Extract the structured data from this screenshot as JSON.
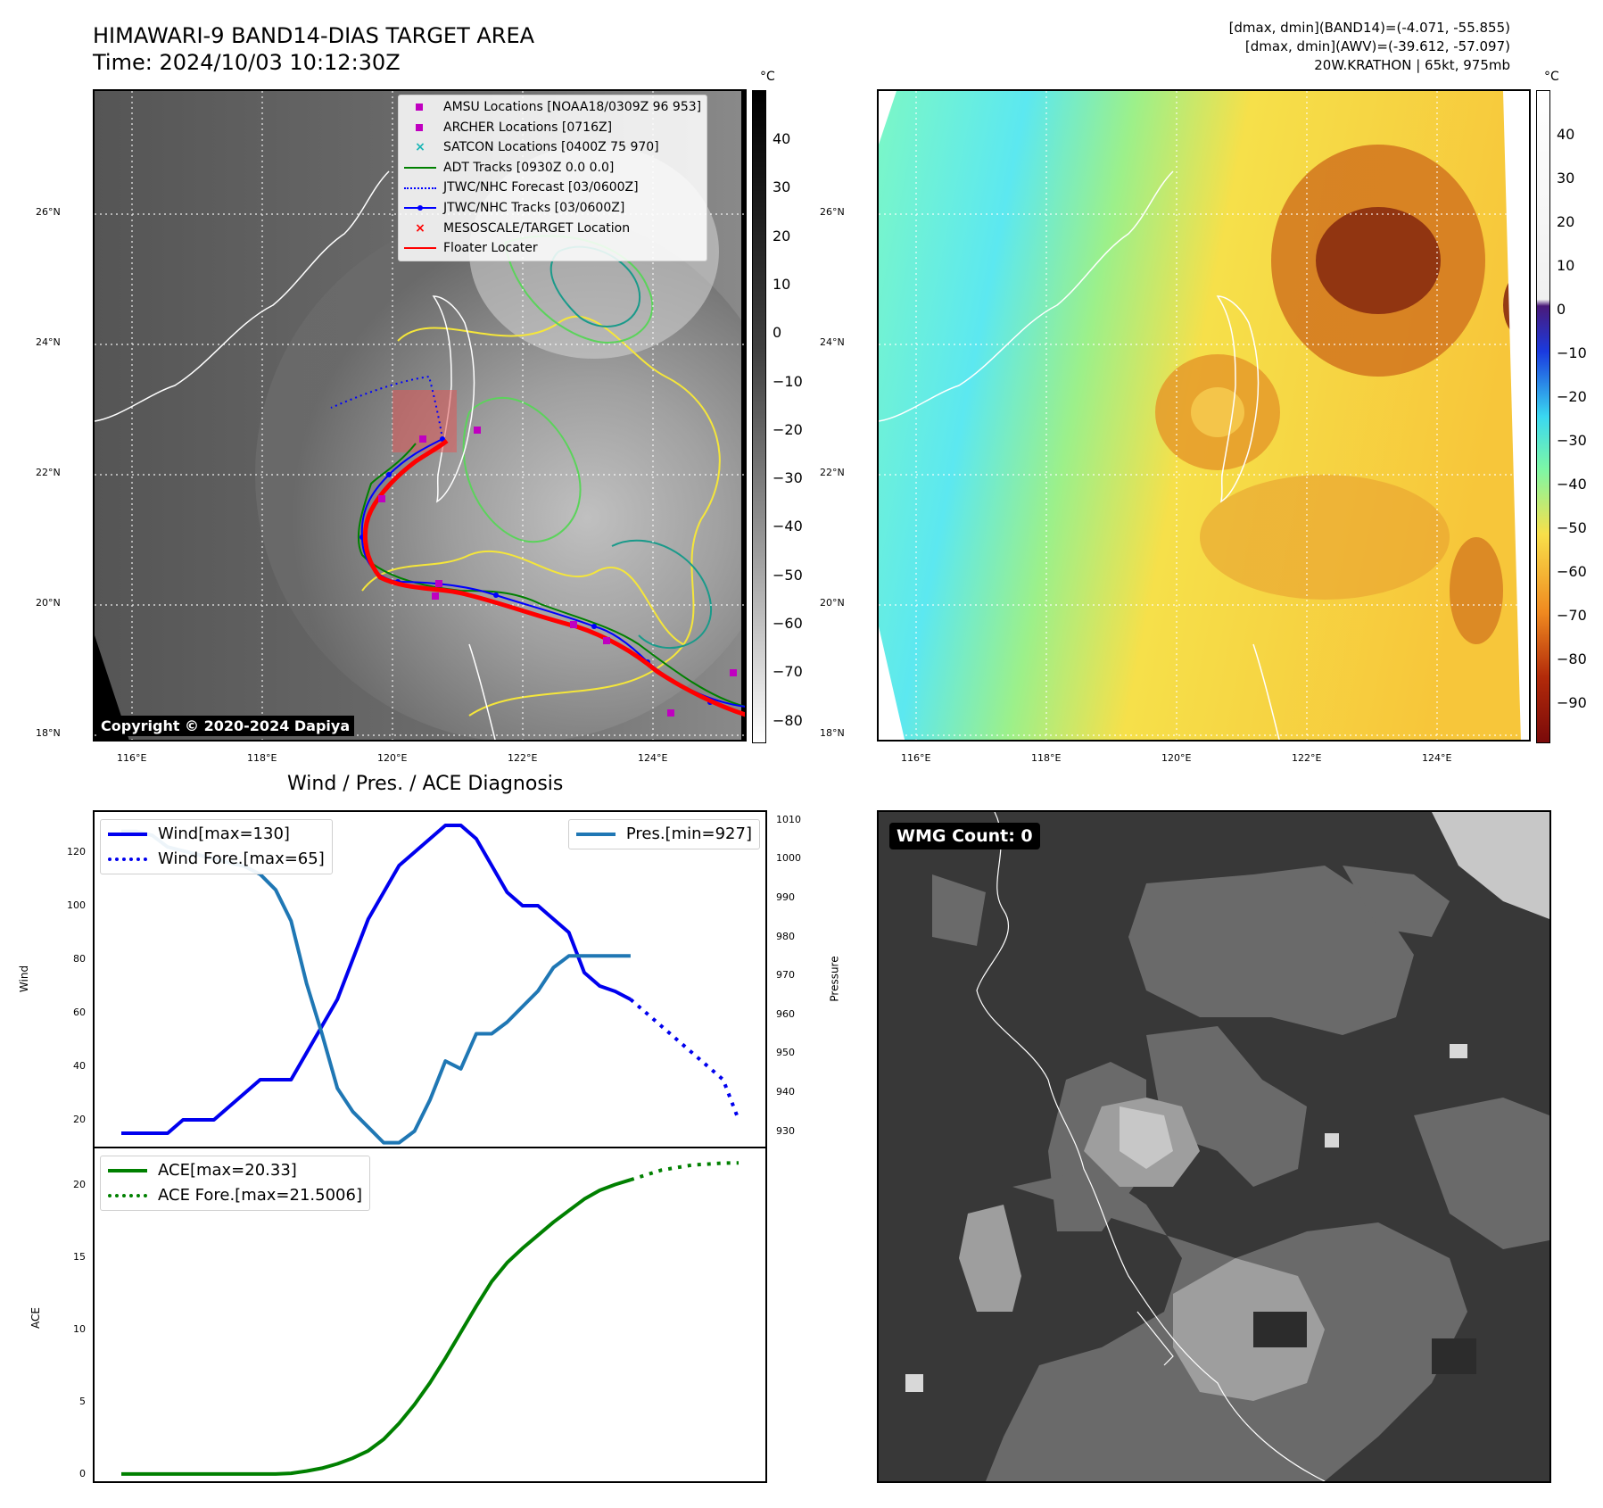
{
  "header": {
    "title_line1": "HIMAWARI-9 BAND14-DIAS TARGET AREA",
    "title_line2": "Time: 2024/10/03 10:12:30Z",
    "meta_line1": "[dmax, dmin](BAND14)=(-4.071, -55.855)",
    "meta_line2": "[dmax, dmin](AWV)=(-39.612, -57.097)",
    "meta_line3": "20W.KRATHON | 65kt, 975mb"
  },
  "maps": {
    "lon_ticks": [
      "116°E",
      "118°E",
      "120°E",
      "122°E",
      "124°E"
    ],
    "lat_ticks": [
      "26°N",
      "24°N",
      "22°N",
      "20°N",
      "18°N"
    ],
    "copyright": "Copyright © 2020-2024 Dapiya",
    "ir_colorbar": {
      "unit": "°C",
      "ticks": [
        "40",
        "30",
        "20",
        "10",
        "0",
        "−10",
        "−20",
        "−30",
        "−40",
        "−50",
        "−60",
        "−70",
        "−80"
      ]
    },
    "wv_colorbar": {
      "unit": "°C",
      "ticks": [
        "40",
        "30",
        "20",
        "10",
        "0",
        "−10",
        "−20",
        "−30",
        "−40",
        "−50",
        "−60",
        "−70",
        "−80",
        "−90"
      ]
    },
    "legend": [
      {
        "label": "AMSU Locations [NOAA18/0309Z 96 953]",
        "symbol": "square",
        "color": "#c000c0"
      },
      {
        "label": "ARCHER Locations [0716Z]",
        "symbol": "square",
        "color": "#c000c0"
      },
      {
        "label": "SATCON Locations [0400Z 75 970]",
        "symbol": "x",
        "color": "#19b5b5"
      },
      {
        "label": "ADT Tracks [0930Z 0.0 0.0]",
        "symbol": "line",
        "color": "#008000"
      },
      {
        "label": "JTWC/NHC Forecast [03/0600Z]",
        "symbol": "dotted",
        "color": "#0000ff"
      },
      {
        "label": "JTWC/NHC Tracks [03/0600Z]",
        "symbol": "line-dot",
        "color": "#0000ff"
      },
      {
        "label": "MESOSCALE/TARGET Location",
        "symbol": "x",
        "color": "#ff0000"
      },
      {
        "label": "Floater Locater",
        "symbol": "line",
        "color": "#ff0000"
      }
    ]
  },
  "wmg": {
    "label": "WMG Count: 0"
  },
  "chart_data": [
    {
      "type": "line",
      "title": "Wind / Pres. / ACE Diagnosis",
      "ylabel": "Wind",
      "y2label": "Pressure",
      "ylim": [
        10,
        135
      ],
      "y2lim": [
        926,
        1012
      ],
      "yticks": [
        "20",
        "40",
        "60",
        "80",
        "100",
        "120"
      ],
      "y2ticks": [
        "930",
        "940",
        "950",
        "960",
        "970",
        "980",
        "990",
        "1000",
        "1010"
      ],
      "xlim": [
        0,
        40
      ],
      "series": [
        {
          "name": "Wind[max=130]",
          "color": "#0000ee",
          "style": "solid",
          "axis": "left",
          "x": [
            0,
            1,
            2,
            3,
            4,
            5,
            6,
            7,
            8,
            9,
            10,
            11,
            12,
            13,
            14,
            15,
            16,
            17,
            18,
            19,
            20,
            21,
            22,
            23,
            24,
            25,
            26,
            27,
            28,
            29,
            30,
            31,
            32,
            33
          ],
          "values": [
            15,
            15,
            15,
            15,
            20,
            20,
            20,
            25,
            30,
            35,
            35,
            35,
            45,
            55,
            65,
            80,
            95,
            105,
            115,
            120,
            125,
            130,
            130,
            125,
            115,
            105,
            100,
            100,
            95,
            90,
            75,
            70,
            68,
            65
          ]
        },
        {
          "name": "Wind Fore.[max=65]",
          "color": "#0000ee",
          "style": "dotted",
          "axis": "left",
          "x": [
            33,
            35,
            37,
            39,
            40
          ],
          "values": [
            65,
            55,
            45,
            35,
            20
          ]
        },
        {
          "name": "Pres.[min=927]",
          "color": "#1f77b4",
          "style": "solid",
          "axis": "right",
          "x": [
            0,
            1,
            2,
            3,
            4,
            5,
            6,
            7,
            8,
            9,
            10,
            11,
            12,
            13,
            14,
            15,
            16,
            17,
            18,
            19,
            20,
            21,
            22,
            23,
            24,
            25,
            26,
            27,
            28,
            29,
            30,
            31,
            32,
            33
          ],
          "values": [
            1007,
            1007,
            1006,
            1003,
            1002,
            1001,
            1000,
            999,
            998,
            996,
            992,
            984,
            968,
            955,
            941,
            935,
            931,
            927,
            927,
            930,
            938,
            948,
            946,
            955,
            955,
            958,
            962,
            966,
            972,
            975,
            975,
            975,
            975,
            975
          ]
        }
      ]
    },
    {
      "type": "line",
      "ylabel": "ACE",
      "ylim": [
        -0.5,
        22.5
      ],
      "yticks": [
        "0",
        "5",
        "10",
        "15",
        "20"
      ],
      "xlim": [
        0,
        40
      ],
      "series": [
        {
          "name": "ACE[max=20.33]",
          "color": "#008000",
          "style": "solid",
          "x": [
            0,
            2,
            4,
            6,
            8,
            10,
            11,
            12,
            13,
            14,
            15,
            16,
            17,
            18,
            19,
            20,
            21,
            22,
            23,
            24,
            25,
            26,
            27,
            28,
            29,
            30,
            31,
            32,
            33
          ],
          "values": [
            0,
            0,
            0,
            0,
            0,
            0,
            0.05,
            0.2,
            0.4,
            0.7,
            1.1,
            1.6,
            2.4,
            3.5,
            4.8,
            6.3,
            8,
            9.8,
            11.6,
            13.3,
            14.6,
            15.6,
            16.5,
            17.4,
            18.2,
            19,
            19.6,
            20,
            20.33
          ]
        },
        {
          "name": "ACE Fore.[max=21.5006]",
          "color": "#008000",
          "style": "dotted",
          "x": [
            33,
            35,
            37,
            39,
            40
          ],
          "values": [
            20.33,
            21.0,
            21.35,
            21.48,
            21.5
          ]
        }
      ]
    }
  ]
}
